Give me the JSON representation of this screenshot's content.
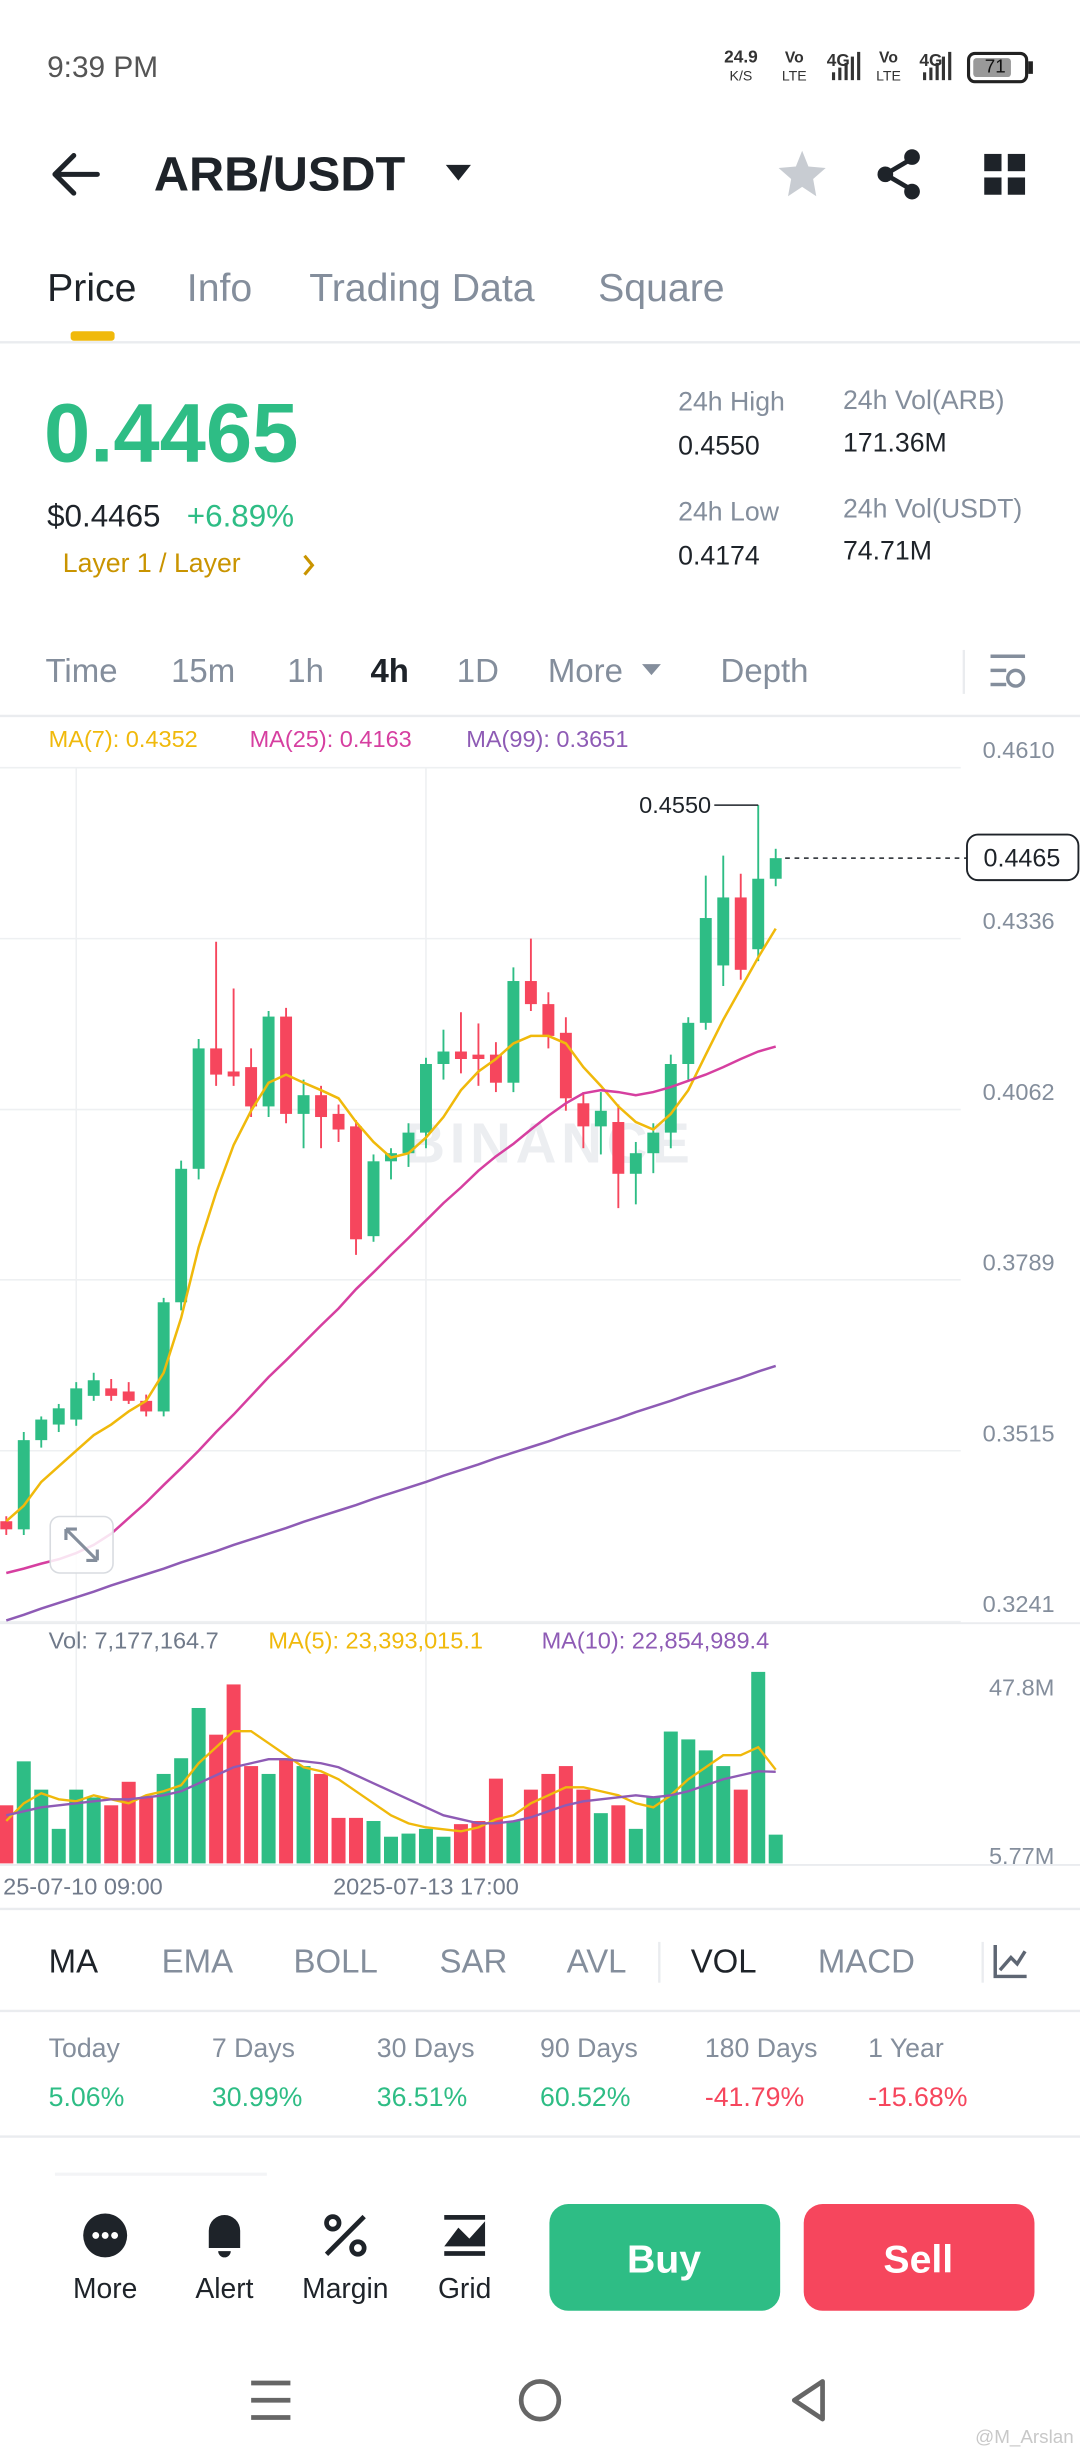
{
  "status_bar": {
    "time": "9:39 PM",
    "speed": "24.9",
    "speed_unit": "K/S",
    "volte": "Vo",
    "lte": "LTE",
    "network": "4G",
    "battery": "71"
  },
  "header": {
    "pair": "ARB/USDT"
  },
  "tabs": [
    "Price",
    "Info",
    "Trading Data",
    "Square"
  ],
  "price": {
    "last": "0.4465",
    "usd": "$0.4465",
    "change": "+6.89%",
    "tag": "Layer 1 / Layer",
    "high_label": "24h High",
    "high": "0.4550",
    "low_label": "24h Low",
    "low": "0.4174",
    "vol_base_label": "24h Vol(ARB)",
    "vol_base": "171.36M",
    "vol_quote_label": "24h Vol(USDT)",
    "vol_quote": "74.71M"
  },
  "intervals": [
    "Time",
    "15m",
    "1h",
    "4h",
    "1D",
    "More",
    "Depth"
  ],
  "chart_data": [
    {
      "type": "candlestick",
      "watermark": "BINANCE",
      "up_color": "#2ebd85",
      "down_color": "#f6465d",
      "ylim": [
        0.3241,
        0.461
      ],
      "yticks": [
        {
          "value": 0.461,
          "label": "0.4610"
        },
        0.4336,
        0.4062,
        0.3789,
        0.3515,
        0.3241
      ],
      "grid": true,
      "last_price": 0.4465,
      "high_mark": {
        "value": 0.455,
        "label": "0.4550"
      },
      "ohlc": [
        [
          0.3402,
          0.341,
          0.338,
          0.3389
        ],
        [
          0.3389,
          0.3545,
          0.338,
          0.3532
        ],
        [
          0.3532,
          0.357,
          0.352,
          0.3565
        ],
        [
          0.3557,
          0.359,
          0.3545,
          0.3583
        ],
        [
          0.3565,
          0.3625,
          0.3555,
          0.3615
        ],
        [
          0.3603,
          0.364,
          0.3595,
          0.3628
        ],
        [
          0.3615,
          0.363,
          0.3595,
          0.3603
        ],
        [
          0.361,
          0.3625,
          0.359,
          0.3595
        ],
        [
          0.3595,
          0.3605,
          0.357,
          0.3578
        ],
        [
          0.3578,
          0.376,
          0.357,
          0.3753
        ],
        [
          0.3753,
          0.398,
          0.374,
          0.3967
        ],
        [
          0.3967,
          0.4175,
          0.395,
          0.416
        ],
        [
          0.416,
          0.4331,
          0.41,
          0.4118
        ],
        [
          0.4123,
          0.4256,
          0.41,
          0.4115
        ],
        [
          0.413,
          0.416,
          0.405,
          0.4067
        ],
        [
          0.4067,
          0.422,
          0.405,
          0.4211
        ],
        [
          0.4211,
          0.4225,
          0.404,
          0.4055
        ],
        [
          0.4055,
          0.411,
          0.4,
          0.4085
        ],
        [
          0.4085,
          0.41,
          0.4,
          0.405
        ],
        [
          0.4055,
          0.407,
          0.401,
          0.403
        ],
        [
          0.4035,
          0.4045,
          0.3829,
          0.3854
        ],
        [
          0.3859,
          0.399,
          0.385,
          0.3979
        ],
        [
          0.3979,
          0.4,
          0.395,
          0.3992
        ],
        [
          0.3992,
          0.404,
          0.397,
          0.4025
        ],
        [
          0.4025,
          0.4145,
          0.4,
          0.4135
        ],
        [
          0.4135,
          0.419,
          0.411,
          0.4155
        ],
        [
          0.4155,
          0.4218,
          0.412,
          0.4143
        ],
        [
          0.415,
          0.42,
          0.41,
          0.4143
        ],
        [
          0.415,
          0.417,
          0.409,
          0.4105
        ],
        [
          0.4105,
          0.429,
          0.409,
          0.4268
        ],
        [
          0.4268,
          0.4336,
          0.422,
          0.4231
        ],
        [
          0.4231,
          0.425,
          0.416,
          0.418
        ],
        [
          0.4185,
          0.421,
          0.406,
          0.408
        ],
        [
          0.4072,
          0.409,
          0.4,
          0.4035
        ],
        [
          0.4035,
          0.409,
          0.399,
          0.406
        ],
        [
          0.4042,
          0.407,
          0.3904,
          0.3959
        ],
        [
          0.3959,
          0.401,
          0.391,
          0.3992
        ],
        [
          0.3992,
          0.404,
          0.396,
          0.4025
        ],
        [
          0.4025,
          0.415,
          0.4,
          0.4135
        ],
        [
          0.4135,
          0.421,
          0.411,
          0.4201
        ],
        [
          0.4201,
          0.4437,
          0.419,
          0.4369
        ],
        [
          0.4293,
          0.4469,
          0.426,
          0.4402
        ],
        [
          0.4402,
          0.444,
          0.427,
          0.4286
        ],
        [
          0.4319,
          0.455,
          0.43,
          0.4432
        ],
        [
          0.4432,
          0.448,
          0.442,
          0.4465
        ]
      ],
      "series": [
        {
          "name": "MA(7): 0.4352",
          "color": "#f0b90b",
          "values": [
            0.3402,
            0.3427,
            0.3465,
            0.349,
            0.3515,
            0.354,
            0.3557,
            0.3578,
            0.3595,
            0.364,
            0.3728,
            0.3841,
            0.3929,
            0.4005,
            0.406,
            0.4105,
            0.4118,
            0.4105,
            0.4093,
            0.408,
            0.4042,
            0.401,
            0.3985,
            0.3992,
            0.4017,
            0.405,
            0.4093,
            0.4123,
            0.4143,
            0.4168,
            0.418,
            0.418,
            0.4168,
            0.413,
            0.41,
            0.4067,
            0.4042,
            0.403,
            0.4055,
            0.4093,
            0.415,
            0.4206,
            0.4256,
            0.4306,
            0.4352
          ]
        },
        {
          "name": "MA(25): 0.4163",
          "color": "#d63fa0",
          "values": [
            0.3319,
            0.3326,
            0.3334,
            0.3341,
            0.3351,
            0.3364,
            0.3382,
            0.3407,
            0.3432,
            0.346,
            0.3487,
            0.3515,
            0.3545,
            0.3573,
            0.3603,
            0.3633,
            0.366,
            0.3688,
            0.3716,
            0.3743,
            0.3774,
            0.3801,
            0.3829,
            0.3856,
            0.3884,
            0.3912,
            0.3937,
            0.3964,
            0.3987,
            0.4007,
            0.403,
            0.4052,
            0.4072,
            0.4088,
            0.4093,
            0.409,
            0.4085,
            0.409,
            0.4098,
            0.4108,
            0.4118,
            0.413,
            0.4143,
            0.4155,
            0.4163
          ]
        },
        {
          "name": "MA(99): 0.3651",
          "color": "#8e5bb5",
          "values": [
            0.3243,
            0.3252,
            0.3262,
            0.3271,
            0.328,
            0.3289,
            0.3299,
            0.3308,
            0.3317,
            0.3326,
            0.3336,
            0.3345,
            0.3354,
            0.3364,
            0.3373,
            0.3382,
            0.3391,
            0.3401,
            0.341,
            0.3419,
            0.3428,
            0.3438,
            0.3447,
            0.3456,
            0.3465,
            0.3475,
            0.3484,
            0.3493,
            0.3503,
            0.3512,
            0.3521,
            0.353,
            0.354,
            0.3549,
            0.3558,
            0.3567,
            0.3577,
            0.3586,
            0.3595,
            0.3605,
            0.3614,
            0.3623,
            0.3632,
            0.3642,
            0.3651
          ]
        }
      ]
    },
    {
      "type": "bar",
      "up_color": "#2ebd85",
      "down_color": "#f6465d",
      "ylim": [
        0,
        47.8
      ],
      "yticks": [
        {
          "value": 47.8,
          "label": "47.8M"
        },
        {
          "value": 5.77,
          "label": "5.77M"
        }
      ],
      "categories": [
        null,
        null,
        null,
        null,
        "25-07-10 09:00",
        null,
        null,
        null,
        null,
        null,
        null,
        null,
        null,
        null,
        null,
        null,
        null,
        null,
        null,
        null,
        null,
        null,
        null,
        null,
        "2025-07-13 17:00",
        null,
        null,
        null,
        null,
        null,
        null,
        null,
        null,
        null,
        null,
        null,
        null,
        null,
        null,
        null,
        null,
        null,
        null,
        null,
        null
      ],
      "series": [
        {
          "name": "Vol: 7,177,164.7",
          "values": [
            14.5,
            25.47,
            18.41,
            8.62,
            18.41,
            16.46,
            14.5,
            20.37,
            16.46,
            22.33,
            26.25,
            38.79,
            32.13,
            44.67,
            24.29,
            22.33,
            26.25,
            24.29,
            22.33,
            11.36,
            11.36,
            10.58,
            6.66,
            7.44,
            8.62,
            6.66,
            9.8,
            10.58,
            21.16,
            10.58,
            18.41,
            22.33,
            24.29,
            18.41,
            12.54,
            14.5,
            8.62,
            16.46,
            32.91,
            30.95,
            28.21,
            24.29,
            18.41,
            47.8,
            7.177
          ]
        },
        {
          "name": "MA(5): 23,393,015.1",
          "color": "#f0b90b",
          "values": [
            10.6,
            15,
            17.5,
            16,
            15.5,
            17,
            16,
            15,
            17,
            18,
            19.5,
            25,
            29,
            33,
            33,
            30,
            27,
            24,
            23,
            21,
            18,
            15,
            12,
            10,
            9,
            8.5,
            8,
            9,
            11,
            12,
            15,
            17,
            19,
            19,
            18,
            17,
            15,
            14,
            17,
            21,
            24,
            27,
            27,
            29,
            23.39
          ]
        },
        {
          "name": "MA(10): 22,854,989.4",
          "color": "#8e5bb5",
          "values": [
            12,
            13,
            14,
            14.5,
            15,
            15.5,
            16,
            16,
            16.5,
            17,
            18,
            20,
            22,
            24,
            25,
            26,
            26,
            25.5,
            25,
            24,
            22,
            20,
            18,
            16,
            14,
            12,
            11,
            10,
            10,
            10.5,
            11.5,
            13,
            14.5,
            15.5,
            16,
            16.5,
            17,
            16.5,
            17,
            18,
            19.5,
            21,
            22,
            23,
            22.85
          ]
        }
      ]
    }
  ],
  "indicators": [
    "MA",
    "EMA",
    "BOLL",
    "SAR",
    "AVL",
    "VOL",
    "MACD"
  ],
  "performance": [
    {
      "label": "Today",
      "value": "5.06%",
      "color": "#2ebd85"
    },
    {
      "label": "7 Days",
      "value": "30.99%",
      "color": "#2ebd85"
    },
    {
      "label": "30 Days",
      "value": "36.51%",
      "color": "#2ebd85"
    },
    {
      "label": "90 Days",
      "value": "60.52%",
      "color": "#2ebd85"
    },
    {
      "label": "180 Days",
      "value": "-41.79%",
      "color": "#f6465d"
    },
    {
      "label": "1 Year",
      "value": "-15.68%",
      "color": "#f6465d"
    }
  ],
  "actions": [
    "More",
    "Alert",
    "Margin",
    "Grid"
  ],
  "buy": "Buy",
  "sell": "Sell",
  "credit": "@M_Arslan"
}
